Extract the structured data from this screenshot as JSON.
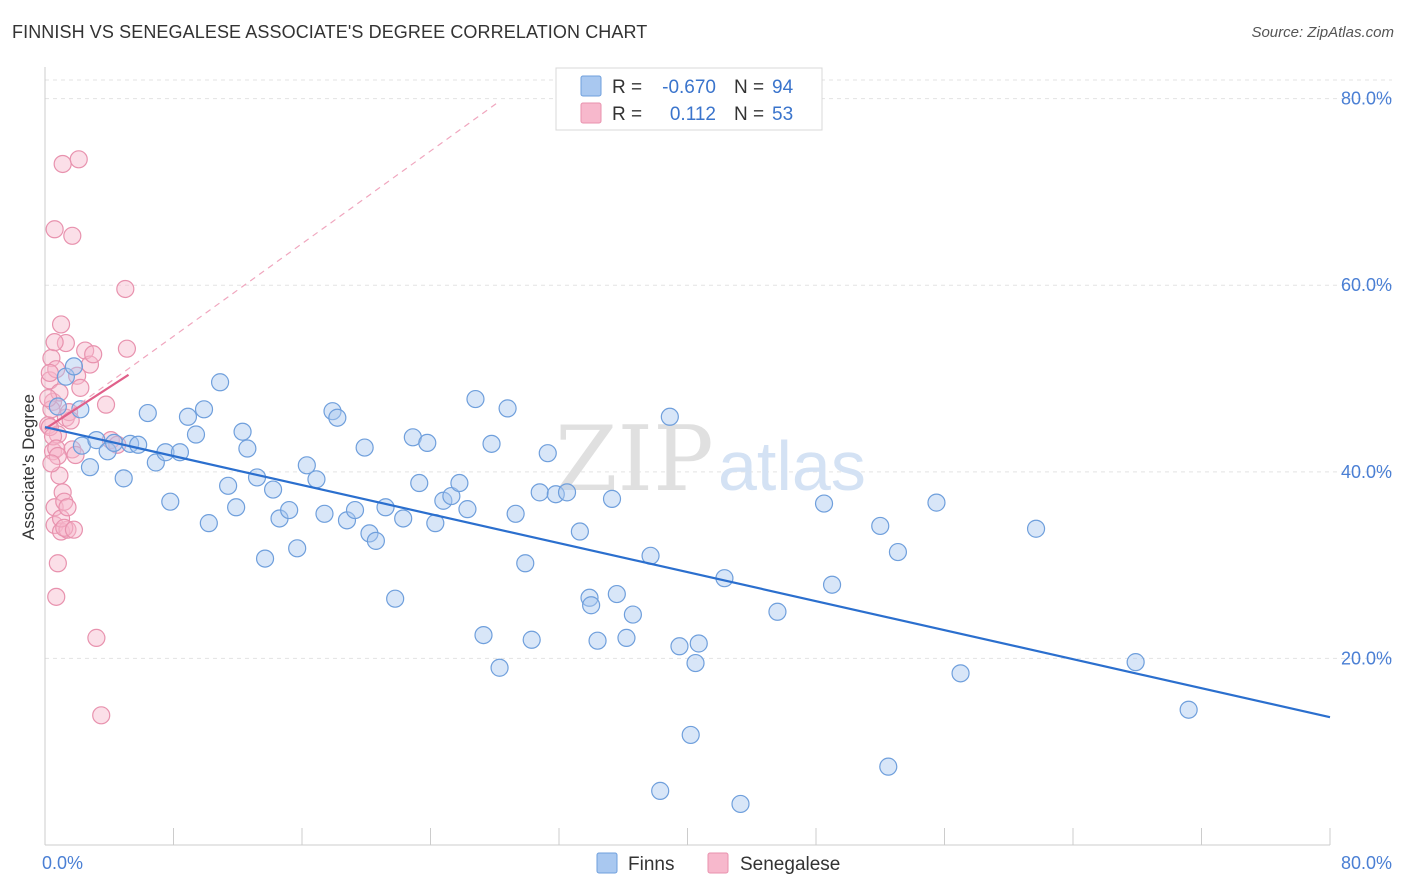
{
  "header": {
    "title": "FINNISH VS SENEGALESE ASSOCIATE'S DEGREE CORRELATION CHART",
    "source": "Source: ZipAtlas.com"
  },
  "watermark": {
    "zip": "ZIP",
    "atlas": "atlas"
  },
  "legend": {
    "r_label": "R =",
    "n_label": "N =",
    "rows": [
      {
        "r": "-0.670",
        "n": "94",
        "color": "#a9c8f0"
      },
      {
        "r": "0.112",
        "n": "53",
        "color": "#f7b8cc"
      }
    ]
  },
  "bottom_legend": [
    {
      "label": "Finns",
      "color": "#a9c8f0"
    },
    {
      "label": "Senegalese",
      "color": "#f7b8cc"
    }
  ],
  "colors": {
    "finns_fill": "#a9c8f0",
    "finns_line": "#2b6fce",
    "sen_fill": "#f7b8cc",
    "sen_line": "#e0608a",
    "tick": "#4a7fd4"
  },
  "chart_data": {
    "type": "scatter",
    "title": "FINNISH VS SENEGALESE ASSOCIATE'S DEGREE CORRELATION CHART",
    "xlabel": "",
    "ylabel": "Associate's Degree",
    "xlim": [
      0,
      80
    ],
    "ylim": [
      0,
      82
    ],
    "x_tick_labels": [
      "0.0%",
      "80.0%"
    ],
    "y_ticks": [
      20,
      40,
      60,
      80
    ],
    "y_tick_labels": [
      "20.0%",
      "40.0%",
      "60.0%",
      "80.0%"
    ],
    "grid": true,
    "legend_position": "top-center",
    "series": [
      {
        "name": "Finns",
        "r": -0.67,
        "n": 94,
        "trend": {
          "x": [
            0,
            80
          ],
          "y": [
            44.8,
            13.7
          ]
        },
        "points": [
          [
            0.8,
            47.0
          ],
          [
            1.3,
            50.2
          ],
          [
            1.8,
            51.3
          ],
          [
            2.2,
            46.7
          ],
          [
            2.3,
            42.8
          ],
          [
            2.8,
            40.5
          ],
          [
            3.2,
            43.4
          ],
          [
            3.9,
            42.2
          ],
          [
            4.3,
            43.1
          ],
          [
            4.9,
            39.3
          ],
          [
            5.3,
            43.0
          ],
          [
            5.8,
            42.9
          ],
          [
            6.4,
            46.3
          ],
          [
            6.9,
            41.0
          ],
          [
            7.5,
            42.1
          ],
          [
            7.8,
            36.8
          ],
          [
            8.4,
            42.1
          ],
          [
            8.9,
            45.9
          ],
          [
            9.4,
            44.0
          ],
          [
            9.9,
            46.7
          ],
          [
            10.2,
            34.5
          ],
          [
            10.9,
            49.6
          ],
          [
            11.4,
            38.5
          ],
          [
            11.9,
            36.2
          ],
          [
            12.3,
            44.3
          ],
          [
            12.6,
            42.5
          ],
          [
            13.2,
            39.4
          ],
          [
            13.7,
            30.7
          ],
          [
            14.2,
            38.1
          ],
          [
            14.6,
            35.0
          ],
          [
            15.2,
            35.9
          ],
          [
            15.7,
            31.8
          ],
          [
            16.3,
            40.7
          ],
          [
            16.9,
            39.2
          ],
          [
            17.4,
            35.5
          ],
          [
            17.9,
            46.5
          ],
          [
            18.2,
            45.8
          ],
          [
            18.8,
            34.8
          ],
          [
            19.3,
            35.9
          ],
          [
            19.9,
            42.6
          ],
          [
            20.2,
            33.4
          ],
          [
            20.6,
            32.6
          ],
          [
            21.2,
            36.2
          ],
          [
            21.8,
            26.4
          ],
          [
            22.3,
            35.0
          ],
          [
            22.9,
            43.7
          ],
          [
            23.3,
            38.8
          ],
          [
            23.8,
            43.1
          ],
          [
            24.3,
            34.5
          ],
          [
            24.8,
            36.9
          ],
          [
            25.3,
            37.4
          ],
          [
            25.8,
            38.8
          ],
          [
            26.3,
            36.0
          ],
          [
            26.8,
            47.8
          ],
          [
            27.3,
            22.5
          ],
          [
            27.8,
            43.0
          ],
          [
            28.3,
            19.0
          ],
          [
            28.8,
            46.8
          ],
          [
            29.3,
            35.5
          ],
          [
            29.9,
            30.2
          ],
          [
            30.3,
            22.0
          ],
          [
            30.8,
            37.8
          ],
          [
            31.3,
            42.0
          ],
          [
            31.8,
            37.6
          ],
          [
            32.5,
            37.8
          ],
          [
            33.3,
            33.6
          ],
          [
            33.9,
            26.5
          ],
          [
            34.0,
            25.7
          ],
          [
            34.4,
            21.9
          ],
          [
            35.3,
            37.1
          ],
          [
            35.6,
            26.9
          ],
          [
            36.2,
            22.2
          ],
          [
            36.6,
            24.7
          ],
          [
            37.7,
            31.0
          ],
          [
            38.3,
            5.8
          ],
          [
            38.9,
            45.9
          ],
          [
            39.5,
            21.3
          ],
          [
            40.2,
            11.8
          ],
          [
            40.5,
            19.5
          ],
          [
            40.7,
            21.6
          ],
          [
            42.3,
            28.6
          ],
          [
            43.3,
            4.4
          ],
          [
            45.6,
            25.0
          ],
          [
            48.5,
            36.6
          ],
          [
            49.0,
            27.9
          ],
          [
            52.0,
            34.2
          ],
          [
            52.5,
            8.4
          ],
          [
            53.1,
            31.4
          ],
          [
            55.5,
            36.7
          ],
          [
            57.0,
            18.4
          ],
          [
            61.7,
            33.9
          ],
          [
            67.9,
            19.6
          ],
          [
            71.2,
            14.5
          ]
        ]
      },
      {
        "name": "Senegalese",
        "r": 0.112,
        "n": 53,
        "trend": {
          "x": [
            0,
            5.2
          ],
          "y": [
            44.6,
            50.4
          ]
        },
        "trend_dashed": {
          "x": [
            0,
            28.2
          ],
          "y": [
            44.6,
            79.6
          ]
        },
        "points": [
          [
            0.2,
            45.0
          ],
          [
            0.3,
            49.8
          ],
          [
            0.4,
            52.2
          ],
          [
            0.5,
            42.2
          ],
          [
            0.6,
            36.2
          ],
          [
            0.7,
            51.0
          ],
          [
            0.8,
            44.0
          ],
          [
            0.5,
            47.5
          ],
          [
            0.6,
            34.3
          ],
          [
            0.7,
            26.6
          ],
          [
            0.8,
            30.2
          ],
          [
            0.9,
            39.6
          ],
          [
            1.0,
            33.6
          ],
          [
            1.1,
            37.8
          ],
          [
            1.2,
            36.8
          ],
          [
            1.3,
            45.8
          ],
          [
            1.4,
            33.8
          ],
          [
            1.0,
            55.8
          ],
          [
            1.3,
            53.8
          ],
          [
            1.5,
            46.4
          ],
          [
            1.7,
            42.4
          ],
          [
            1.9,
            41.8
          ],
          [
            2.0,
            50.3
          ],
          [
            2.2,
            49.0
          ],
          [
            2.5,
            53.0
          ],
          [
            2.8,
            51.5
          ],
          [
            3.0,
            52.6
          ],
          [
            3.2,
            22.2
          ],
          [
            3.5,
            13.9
          ],
          [
            3.8,
            47.2
          ],
          [
            4.1,
            43.4
          ],
          [
            4.5,
            42.9
          ],
          [
            5.1,
            53.2
          ],
          [
            5.0,
            59.6
          ],
          [
            1.1,
            73.0
          ],
          [
            2.1,
            73.5
          ],
          [
            0.6,
            66.0
          ],
          [
            1.7,
            65.3
          ],
          [
            0.3,
            44.8
          ],
          [
            0.4,
            46.7
          ],
          [
            0.5,
            43.8
          ],
          [
            0.6,
            53.9
          ],
          [
            0.7,
            42.5
          ],
          [
            0.8,
            41.7
          ],
          [
            0.9,
            48.5
          ],
          [
            1.0,
            35.0
          ],
          [
            1.2,
            34.0
          ],
          [
            1.4,
            36.2
          ],
          [
            1.6,
            45.5
          ],
          [
            1.8,
            33.8
          ],
          [
            0.2,
            47.9
          ],
          [
            0.3,
            50.6
          ],
          [
            0.4,
            40.9
          ]
        ]
      }
    ]
  }
}
